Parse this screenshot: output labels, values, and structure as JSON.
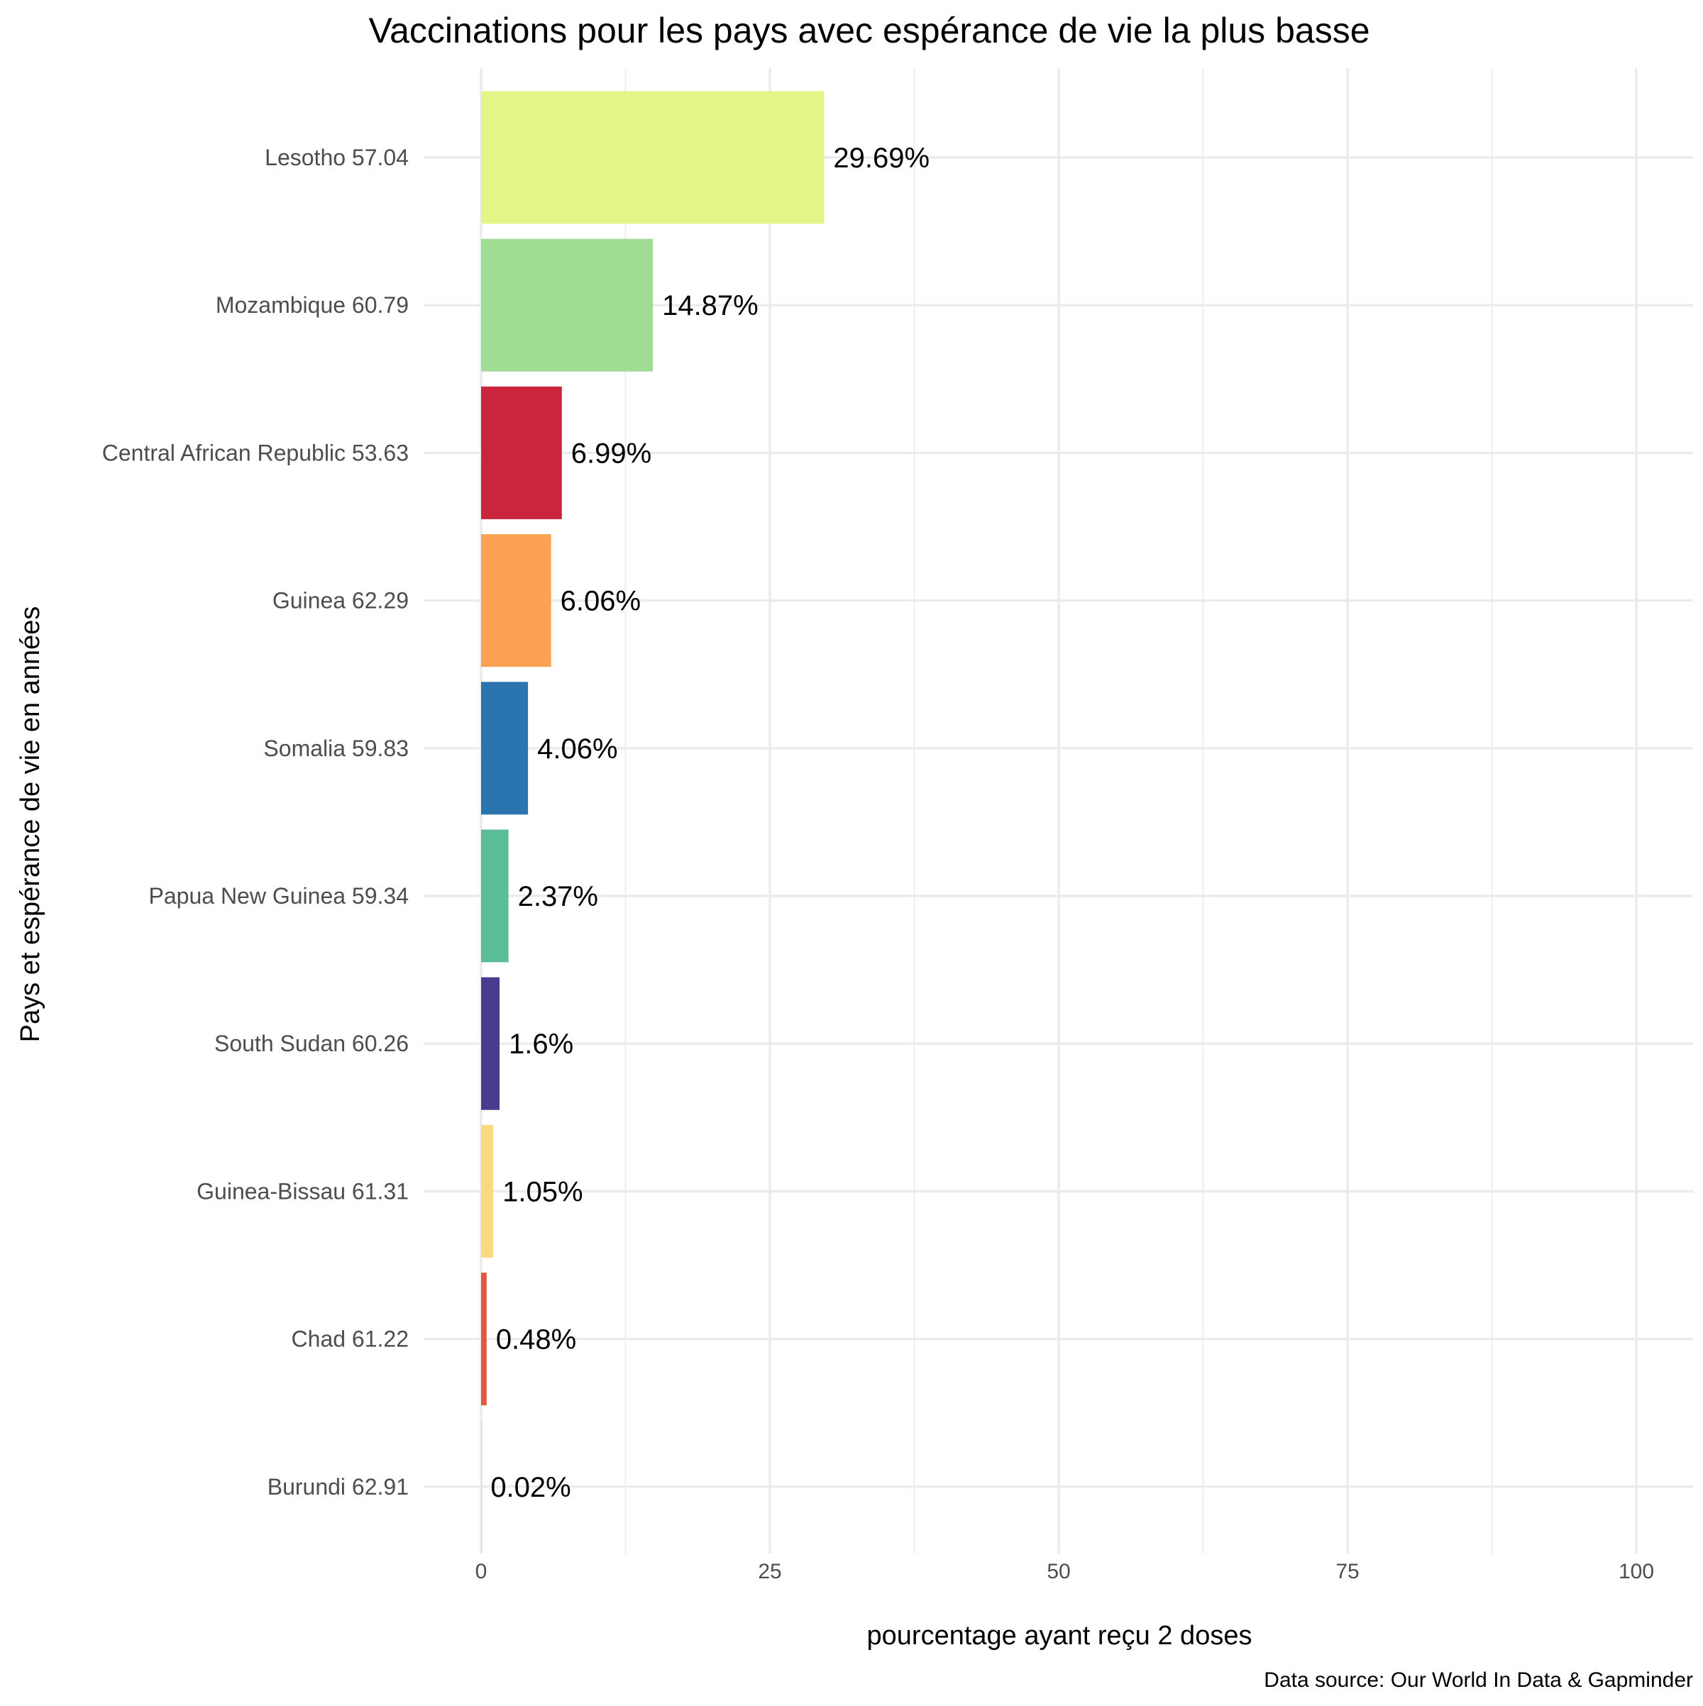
{
  "chart_data": {
    "type": "bar",
    "orientation": "horizontal",
    "title": "Vaccinations pour les pays avec espérance de vie la plus basse",
    "xlabel": "pourcentage ayant reçu 2 doses",
    "ylabel": "Pays et espérance de vie en années",
    "caption": "Data source: Our World In Data & Gapminder",
    "xlim": [
      0,
      100
    ],
    "x_ticks": [
      "0",
      "25",
      "50",
      "75",
      "100"
    ],
    "grid": true,
    "legend": "none",
    "categories": [
      "Lesotho 57.04",
      "Mozambique 60.79",
      "Central African Republic 53.63",
      "Guinea 62.29",
      "Somalia 59.83",
      "Papua New Guinea 59.34",
      "South Sudan 60.26",
      "Guinea-Bissau 61.31",
      "Chad 61.22",
      "Burundi 62.91"
    ],
    "values": [
      29.69,
      14.87,
      6.99,
      6.06,
      4.06,
      2.37,
      1.6,
      1.05,
      0.48,
      0.02
    ],
    "data_labels": [
      "29.69%",
      "14.87%",
      "6.99%",
      "6.06%",
      "4.06%",
      "2.37%",
      "1.6%",
      "1.05%",
      "0.48%",
      "0.02%"
    ],
    "colors": [
      "#e1f686",
      "#a0dc93",
      "#c9253c",
      "#fba152",
      "#2a75b0",
      "#5bbd96",
      "#4a3b8e",
      "#fbd980",
      "#e4573f",
      "#e7d4e8"
    ]
  }
}
